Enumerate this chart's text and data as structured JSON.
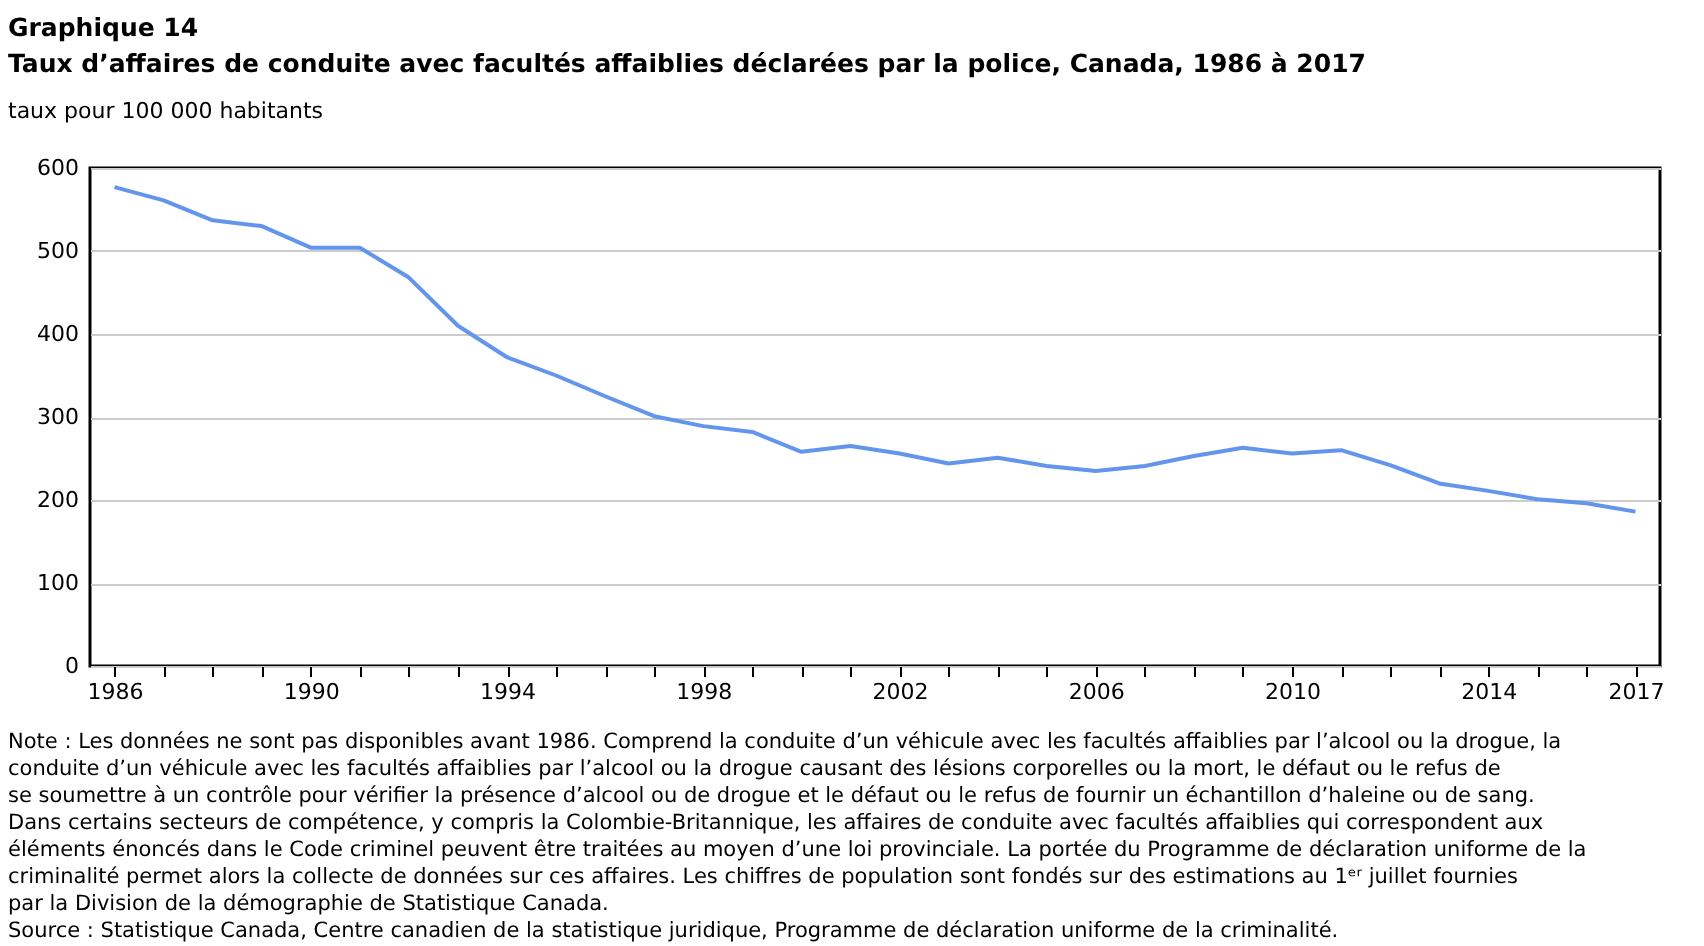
{
  "chart_data": {
    "type": "line",
    "title": "Graphique 14",
    "subtitle": "Taux d’affaires de conduite avec facultés affaiblies déclarées par la police, Canada, 1986 à 2017",
    "ylabel": "taux pour 100 000 habitants",
    "x": [
      1986,
      1987,
      1988,
      1989,
      1990,
      1991,
      1992,
      1993,
      1994,
      1995,
      1996,
      1997,
      1998,
      1999,
      2000,
      2001,
      2002,
      2003,
      2004,
      2005,
      2006,
      2007,
      2008,
      2009,
      2010,
      2011,
      2012,
      2013,
      2014,
      2015,
      2016,
      2017
    ],
    "series": [
      {
        "color": "#6495ed",
        "values": [
          577,
          561,
          537,
          530,
          504,
          504,
          468,
          410,
          372,
          350,
          325,
          301,
          289,
          282,
          258,
          265,
          256,
          244,
          251,
          241,
          235,
          241,
          253,
          263,
          256,
          260,
          242,
          220,
          211,
          201,
          196,
          186
        ]
      }
    ],
    "xlim": [
      1985.5,
      2017.5
    ],
    "xticks": [
      1986,
      {
        "value": 1987,
        "label": null
      },
      {
        "value": 1988,
        "label": null
      },
      {
        "value": 1989,
        "label": null
      },
      1990,
      {
        "value": 1991,
        "label": null
      },
      {
        "value": 1992,
        "label": null
      },
      {
        "value": 1993,
        "label": null
      },
      1994,
      {
        "value": 1995,
        "label": null
      },
      {
        "value": 1996,
        "label": null
      },
      {
        "value": 1997,
        "label": null
      },
      1998,
      {
        "value": 1999,
        "label": null
      },
      {
        "value": 2000,
        "label": null
      },
      {
        "value": 2001,
        "label": null
      },
      2002,
      {
        "value": 2003,
        "label": null
      },
      {
        "value": 2004,
        "label": null
      },
      {
        "value": 2005,
        "label": null
      },
      2006,
      {
        "value": 2007,
        "label": null
      },
      {
        "value": 2008,
        "label": null
      },
      {
        "value": 2009,
        "label": null
      },
      2010,
      {
        "value": 2011,
        "label": null
      },
      {
        "value": 2012,
        "label": null
      },
      {
        "value": 2013,
        "label": null
      },
      2014,
      {
        "value": 2015,
        "label": null
      },
      {
        "value": 2016,
        "label": null
      },
      2017
    ],
    "ylim": [
      0,
      600
    ],
    "yticks": [
      0,
      100,
      200,
      300,
      400,
      500,
      600
    ],
    "grid": "y",
    "legend": false,
    "marker": "none",
    "line_style": "solid",
    "annotations": [
      "Note : Les données ne sont pas disponibles avant 1986. Comprend la conduite d’un véhicule avec les facultés affaiblies par l’alcool ou la drogue, la conduite d’un véhicule avec les facultés affaiblies par l’alcool ou la drogue causant des lésions corporelles ou la mort, le défaut ou le refus de se soumettre à un contrôle pour vérifier la présence d’alcool ou de drogue et le défaut ou le refus de fournir un échantillon d’haleine ou de sang. Dans certains secteurs de compétence, y compris la Colombie-Britannique, les affaires de conduite avec facultés affaiblies qui correspondent aux éléments énoncés dans le Code criminel peuvent être traitées au moyen d’une loi provinciale. La portée du Programme de déclaration uniforme de la criminalité permet alors la collecte de données sur ces affaires. Les chiffres de population sont fondés sur des estimations au 1ᵉʳ juillet fournies par la Division de la démographie de Statistique Canada.",
      "Source : Statistique Canada, Centre canadien de la statistique juridique, Programme de déclaration uniforme de la criminalité."
    ]
  }
}
